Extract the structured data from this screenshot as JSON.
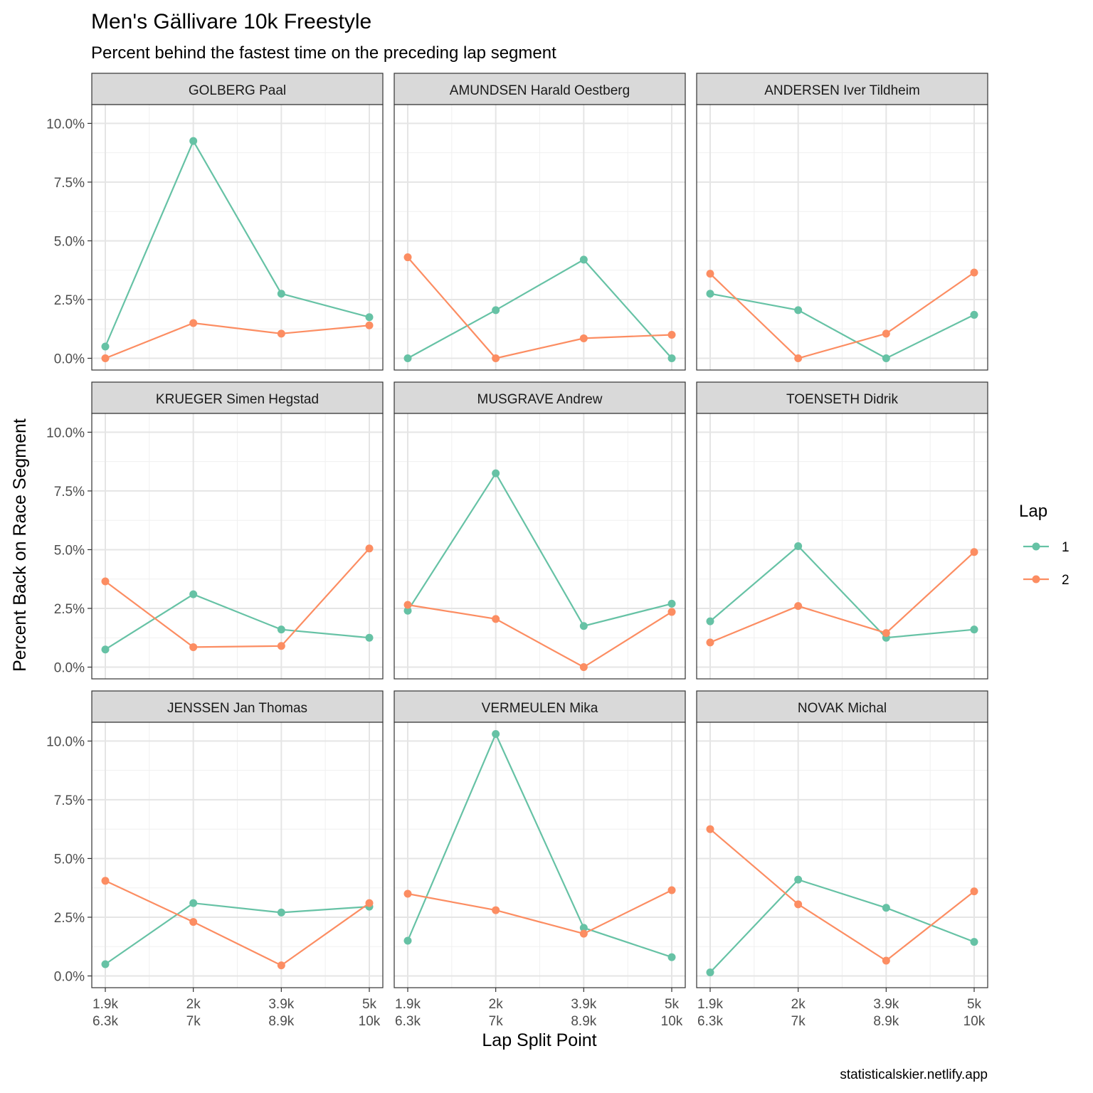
{
  "chart_data": {
    "type": "line",
    "title": "Men's Gällivare 10k Freestyle",
    "subtitle": "Percent behind the fastest time on the preceding lap segment",
    "xlabel": "Lap Split Point",
    "ylabel": "Percent Back on Race Segment",
    "caption": "statisticalskier.netlify.app",
    "x_categories": [
      [
        "1.9k",
        "6.3k"
      ],
      [
        "2k",
        "7k"
      ],
      [
        "3.9k",
        "8.9k"
      ],
      [
        "5k",
        "10k"
      ]
    ],
    "y_ticks": [
      "0.0%",
      "2.5%",
      "5.0%",
      "7.5%",
      "10.0%"
    ],
    "y_tick_values": [
      0,
      2.5,
      5,
      7.5,
      10
    ],
    "ylim": [
      -0.5,
      10.8
    ],
    "grid": true,
    "legend": {
      "title": "Lap",
      "position": "right",
      "entries": [
        {
          "label": "1",
          "color": "#66c2a5"
        },
        {
          "label": "2",
          "color": "#fc8d62"
        }
      ]
    },
    "panels": [
      {
        "name": "GOLBERG Paal",
        "series": [
          {
            "lap": "1",
            "values": [
              0.5,
              9.25,
              2.75,
              1.75
            ]
          },
          {
            "lap": "2",
            "values": [
              0.0,
              1.5,
              1.05,
              1.4
            ]
          }
        ]
      },
      {
        "name": "AMUNDSEN Harald Oestberg",
        "series": [
          {
            "lap": "1",
            "values": [
              0.0,
              2.05,
              4.2,
              0.0
            ]
          },
          {
            "lap": "2",
            "values": [
              4.3,
              0.0,
              0.85,
              1.0
            ]
          }
        ]
      },
      {
        "name": "ANDERSEN Iver Tildheim",
        "series": [
          {
            "lap": "1",
            "values": [
              2.75,
              2.05,
              0.0,
              1.85
            ]
          },
          {
            "lap": "2",
            "values": [
              3.6,
              0.0,
              1.05,
              3.65
            ]
          }
        ]
      },
      {
        "name": "KRUEGER Simen Hegstad",
        "series": [
          {
            "lap": "1",
            "values": [
              0.75,
              3.1,
              1.6,
              1.25
            ]
          },
          {
            "lap": "2",
            "values": [
              3.65,
              0.85,
              0.9,
              5.05
            ]
          }
        ]
      },
      {
        "name": "MUSGRAVE Andrew",
        "series": [
          {
            "lap": "1",
            "values": [
              2.4,
              8.25,
              1.75,
              2.7
            ]
          },
          {
            "lap": "2",
            "values": [
              2.65,
              2.05,
              0.0,
              2.35
            ]
          }
        ]
      },
      {
        "name": "TOENSETH Didrik",
        "series": [
          {
            "lap": "1",
            "values": [
              1.95,
              5.15,
              1.25,
              1.6
            ]
          },
          {
            "lap": "2",
            "values": [
              1.05,
              2.6,
              1.45,
              4.9
            ]
          }
        ]
      },
      {
        "name": "JENSSEN Jan Thomas",
        "series": [
          {
            "lap": "1",
            "values": [
              0.5,
              3.1,
              2.7,
              2.95
            ]
          },
          {
            "lap": "2",
            "values": [
              4.05,
              2.3,
              0.45,
              3.1
            ]
          }
        ]
      },
      {
        "name": "VERMEULEN Mika",
        "series": [
          {
            "lap": "1",
            "values": [
              1.5,
              10.3,
              2.05,
              0.8
            ]
          },
          {
            "lap": "2",
            "values": [
              3.5,
              2.8,
              1.8,
              3.65
            ]
          }
        ]
      },
      {
        "name": "NOVAK Michal",
        "series": [
          {
            "lap": "1",
            "values": [
              0.15,
              4.1,
              2.9,
              1.45
            ]
          },
          {
            "lap": "2",
            "values": [
              6.25,
              3.05,
              0.65,
              3.6
            ]
          }
        ]
      }
    ]
  }
}
